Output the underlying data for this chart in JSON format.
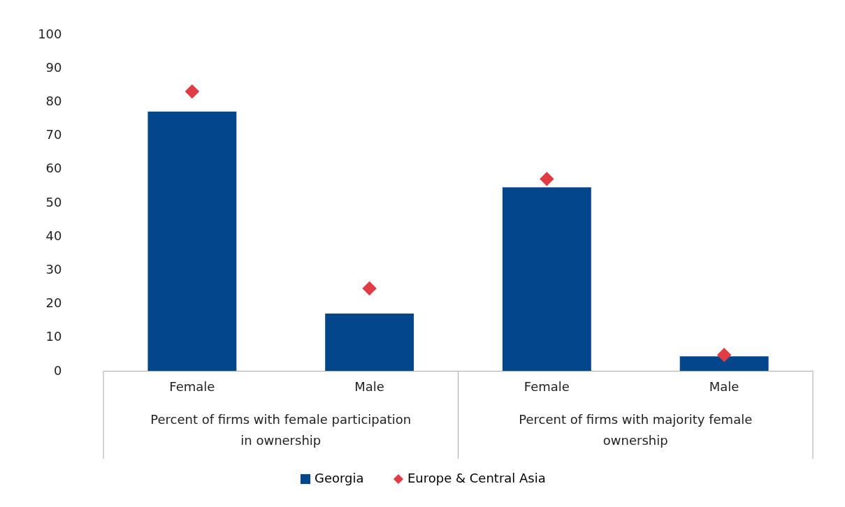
{
  "chart_data": {
    "type": "bar",
    "categories": [
      "Female",
      "Male",
      "Female",
      "Male"
    ],
    "series": [
      {
        "name": "Georgia",
        "color": "#03468c",
        "values": [
          77,
          17,
          54.5,
          4.3
        ]
      },
      {
        "name": "Europe & Central Asia",
        "type": "scatter",
        "marker": "diamond",
        "color": "#e03c46",
        "values": [
          83,
          24.5,
          57,
          4.7
        ]
      }
    ],
    "annotations": [
      "Percent of firms with female participation in ownership",
      "Percent of firms with majority female ownership"
    ],
    "ylim": [
      0,
      100
    ],
    "yticks": [
      0,
      10,
      20,
      30,
      40,
      50,
      60,
      70,
      80,
      90,
      100
    ],
    "grid": false,
    "legend": "bottom"
  }
}
